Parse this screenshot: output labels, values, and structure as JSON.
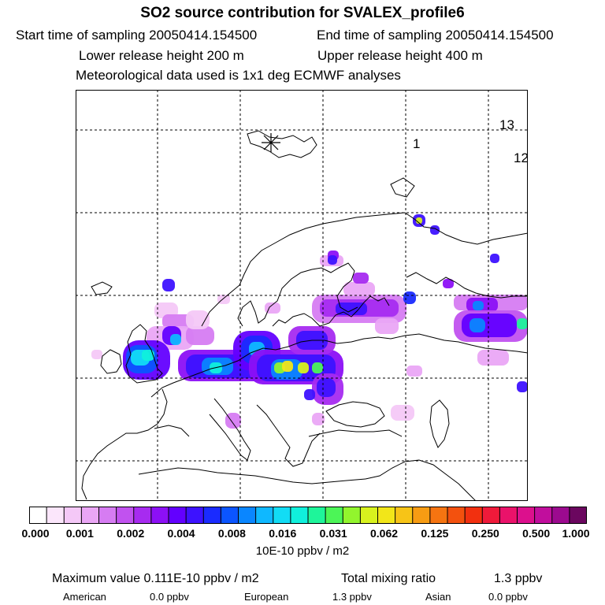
{
  "title": "SO2 source contribution for SVALEX_profile6",
  "header": {
    "start_time": "Start time of sampling 20050414.154500",
    "end_time": "End time of sampling 20050414.154500",
    "lower_height": "Lower release height  200 m",
    "upper_height": "Upper release height  400 m",
    "met_data": "Meteorological data used is 1x1 deg ECMWF analyses"
  },
  "map": {
    "labels": {
      "grid_a": "13",
      "grid_b": "12",
      "grid_c": "1"
    },
    "release_site_icon": "asterisk-icon"
  },
  "colorbar": {
    "colors": [
      "#ffffff",
      "#fbe6fb",
      "#f4c8f7",
      "#eaa6f5",
      "#d67cf2",
      "#c152ef",
      "#a72bf0",
      "#8c10f5",
      "#6300ff",
      "#3d12ff",
      "#1a2bff",
      "#0b55ff",
      "#0a86ff",
      "#0fb8ff",
      "#12dcf5",
      "#10f0dc",
      "#1ef59a",
      "#4cf557",
      "#92f52d",
      "#d8f21e",
      "#f2e619",
      "#f7c417",
      "#f79c13",
      "#f57411",
      "#f3510e",
      "#f2300f",
      "#ef1a3a",
      "#ea126a",
      "#dc108d",
      "#c10e9d",
      "#9c0a8f",
      "#6b075f"
    ],
    "ticks": [
      "0.000",
      "0.001",
      "0.002",
      "0.004",
      "0.008",
      "0.016",
      "0.031",
      "0.062",
      "0.125",
      "0.250",
      "0.500",
      "1.000"
    ],
    "units": "10E-10 ppbv / m2"
  },
  "footer": {
    "max_label": "Maximum value  0.111E-10 ppbv / m2",
    "total_label": "Total mixing ratio",
    "total_value": "1.3 ppbv",
    "american_label": "American",
    "american_value": "0.0 ppbv",
    "european_label": "European",
    "european_value": "1.3 ppbv",
    "asian_label": "Asian",
    "asian_value": "0.0 ppbv"
  }
}
